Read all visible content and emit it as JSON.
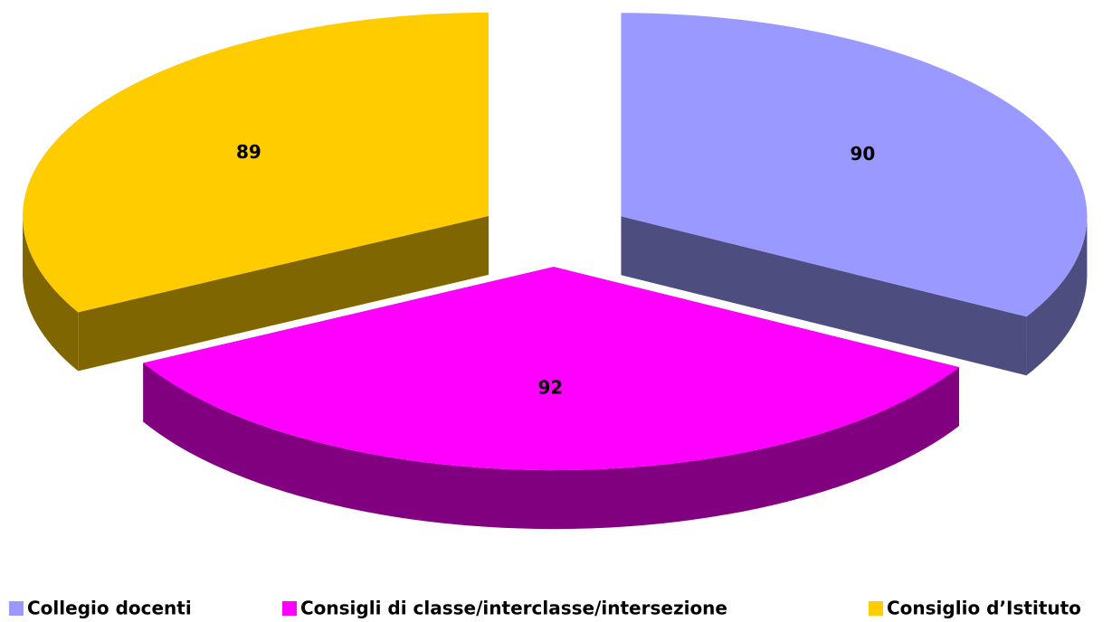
{
  "chart_data": {
    "type": "pie3d",
    "categories": [
      "Collegio docenti",
      "Consigli di classe/interclasse/intersezione",
      "Consiglio d’Istituto"
    ],
    "values": [
      90,
      92,
      89
    ],
    "colors": [
      "#9999ff",
      "#ff00ff",
      "#ffcc00"
    ]
  }
}
